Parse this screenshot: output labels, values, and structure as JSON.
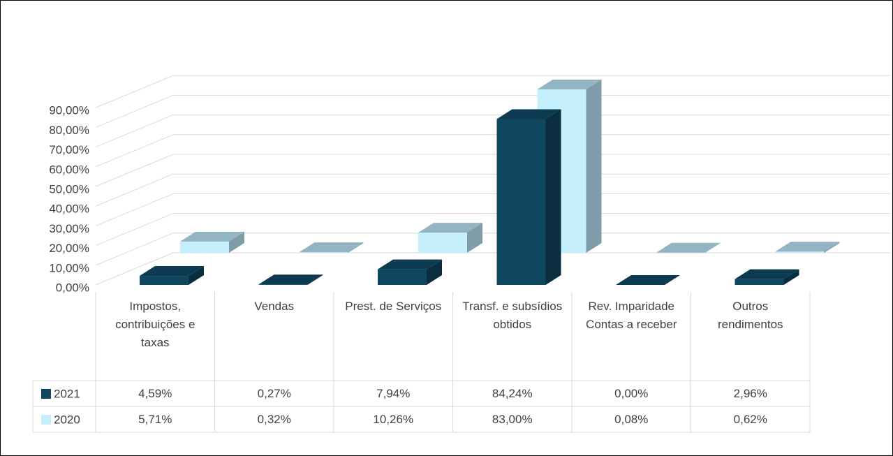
{
  "chart_data": {
    "type": "bar3d",
    "categories": [
      "Impostos, contribuições e taxas",
      "Vendas",
      "Prest. de Serviços",
      "Transf. e subsídios obtidos",
      "Rev. Imparidade Contas a receber",
      "Outros rendimentos"
    ],
    "series": [
      {
        "name": "2021",
        "color": "#0f4761",
        "values": [
          4.59,
          0.27,
          7.94,
          84.24,
          0.0,
          2.96
        ],
        "value_labels": [
          "4,59%",
          "0,27%",
          "7,94%",
          "84,24%",
          "0,00%",
          "2,96%"
        ]
      },
      {
        "name": "2020",
        "color": "#c5effc",
        "values": [
          5.71,
          0.32,
          10.26,
          83.0,
          0.08,
          0.62
        ],
        "value_labels": [
          "5,71%",
          "0,32%",
          "10,26%",
          "83,00%",
          "0,08%",
          "0,62%"
        ]
      }
    ],
    "ylim": [
      0,
      90
    ],
    "yticks": [
      {
        "value": 0,
        "label": "0,00%"
      },
      {
        "value": 10,
        "label": "10,00%"
      },
      {
        "value": 20,
        "label": "20,00%"
      },
      {
        "value": 30,
        "label": "30,00%"
      },
      {
        "value": 40,
        "label": "40,00%"
      },
      {
        "value": 50,
        "label": "50,00%"
      },
      {
        "value": 60,
        "label": "60,00%"
      },
      {
        "value": 70,
        "label": "70,00%"
      },
      {
        "value": 80,
        "label": "80,00%"
      },
      {
        "value": 90,
        "label": "90,00%"
      }
    ],
    "grid": true
  }
}
